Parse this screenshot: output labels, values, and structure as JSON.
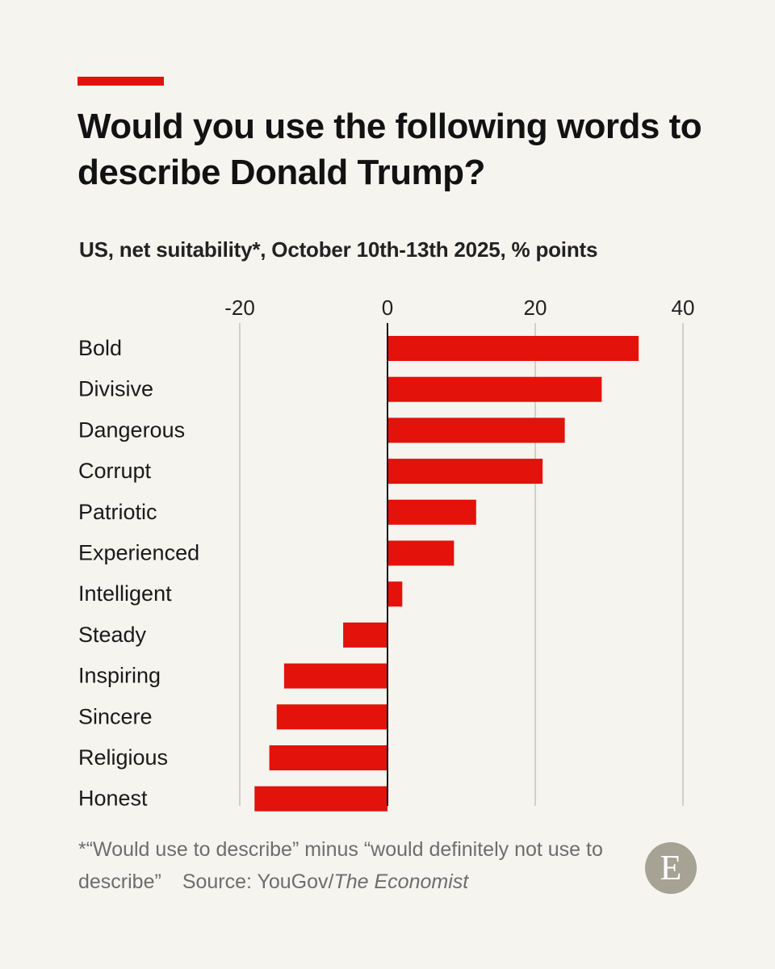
{
  "header": {
    "title": "Would you use the following words to describe Donald Trump?",
    "subtitle": "US, net suitability*, October 10th-13th 2025, % points"
  },
  "footer": {
    "footnote": "*“Would use to describe” minus “would definitely not use to describe”",
    "source_prefix": "Source: YouGov/",
    "source_name": "The Economist",
    "logo_letter": "E"
  },
  "colors": {
    "accent": "#e3120b",
    "bar": "#e3120b",
    "background": "#f5f4ef",
    "gridline": "#d2d0c8",
    "logo": "#a6a294"
  },
  "chart_data": {
    "type": "bar",
    "orientation": "horizontal",
    "title": "Would you use the following words to describe Donald Trump?",
    "subtitle": "US, net suitability*, October 10th-13th 2025, % points",
    "categories": [
      "Bold",
      "Divisive",
      "Dangerous",
      "Corrupt",
      "Patriotic",
      "Experienced",
      "Intelligent",
      "Steady",
      "Inspiring",
      "Sincere",
      "Religious",
      "Honest"
    ],
    "values": [
      34,
      29,
      24,
      21,
      12,
      9,
      2,
      -6,
      -14,
      -15,
      -16,
      -18
    ],
    "xlim": [
      -20,
      40
    ],
    "xticks": [
      -20,
      0,
      20,
      40
    ],
    "tick_labels": [
      "-20",
      "0",
      "20",
      "40"
    ],
    "grid": true,
    "axis_position": "top",
    "xlabel": "",
    "ylabel": ""
  }
}
